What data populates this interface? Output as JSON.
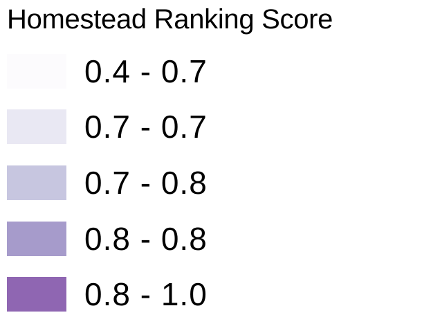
{
  "legend": {
    "title": "Homestead Ranking Score",
    "items": [
      {
        "label": "0.4 - 0.7",
        "color": "#fcfbfd"
      },
      {
        "label": "0.7 - 0.7",
        "color": "#e9e8f3"
      },
      {
        "label": "0.7 - 0.8",
        "color": "#c7c6e0"
      },
      {
        "label": "0.8 - 0.8",
        "color": "#a69bcb"
      },
      {
        "label": "0.8 - 1.0",
        "color": "#8f66b2"
      }
    ]
  }
}
